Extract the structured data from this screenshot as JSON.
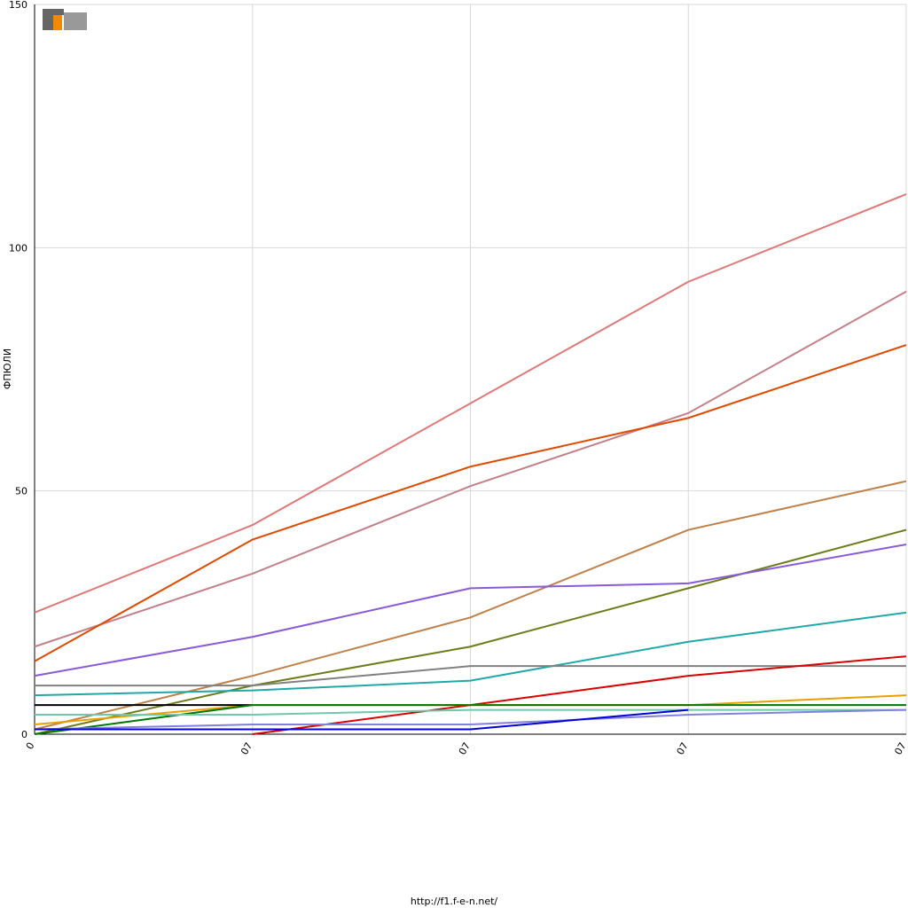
{
  "chart_data": {
    "type": "line",
    "y_label": "ФПЮЛИ",
    "footer": "http://f1.f-e-n.net/",
    "categories": [
      "0",
      "07",
      "07",
      "07",
      "07"
    ],
    "ylim": [
      0,
      150
    ],
    "yticks": [
      0,
      50,
      100,
      150
    ],
    "grid": true,
    "series": [
      {
        "color": "#e07878",
        "values": [
          25,
          43,
          68,
          93,
          111
        ]
      },
      {
        "color": "#c48088",
        "values": [
          18,
          33,
          51,
          66,
          91
        ]
      },
      {
        "color": "#e04a00",
        "values": [
          15,
          40,
          55,
          65,
          80
        ]
      },
      {
        "color": "#c0804a",
        "values": [
          1,
          12,
          24,
          42,
          52
        ]
      },
      {
        "color": "#6b7d1a",
        "values": [
          0,
          10,
          18,
          30,
          42
        ]
      },
      {
        "color": "#8a5ad8",
        "values": [
          12,
          20,
          30,
          31,
          39
        ]
      },
      {
        "color": "#20a8a8",
        "values": [
          8,
          9,
          11,
          19,
          25
        ]
      },
      {
        "color": "#808080",
        "values": [
          10,
          10,
          14,
          14,
          14
        ]
      },
      {
        "color": "#d80000",
        "values": [
          null,
          0,
          6,
          12,
          16
        ]
      },
      {
        "color": "#e8a000",
        "values": [
          2,
          6,
          6,
          6,
          8
        ]
      },
      {
        "color": "#000000",
        "values": [
          6,
          6,
          null,
          null,
          null
        ]
      },
      {
        "color": "#007800",
        "values": [
          0,
          6,
          6,
          6,
          6
        ]
      },
      {
        "color": "#70c8a8",
        "values": [
          4,
          4,
          5,
          5,
          5
        ]
      },
      {
        "color": "#8080e0",
        "values": [
          1,
          2,
          2,
          4,
          5
        ]
      },
      {
        "color": "#0000d8",
        "values": [
          1,
          1,
          1,
          5,
          null
        ]
      }
    ]
  }
}
